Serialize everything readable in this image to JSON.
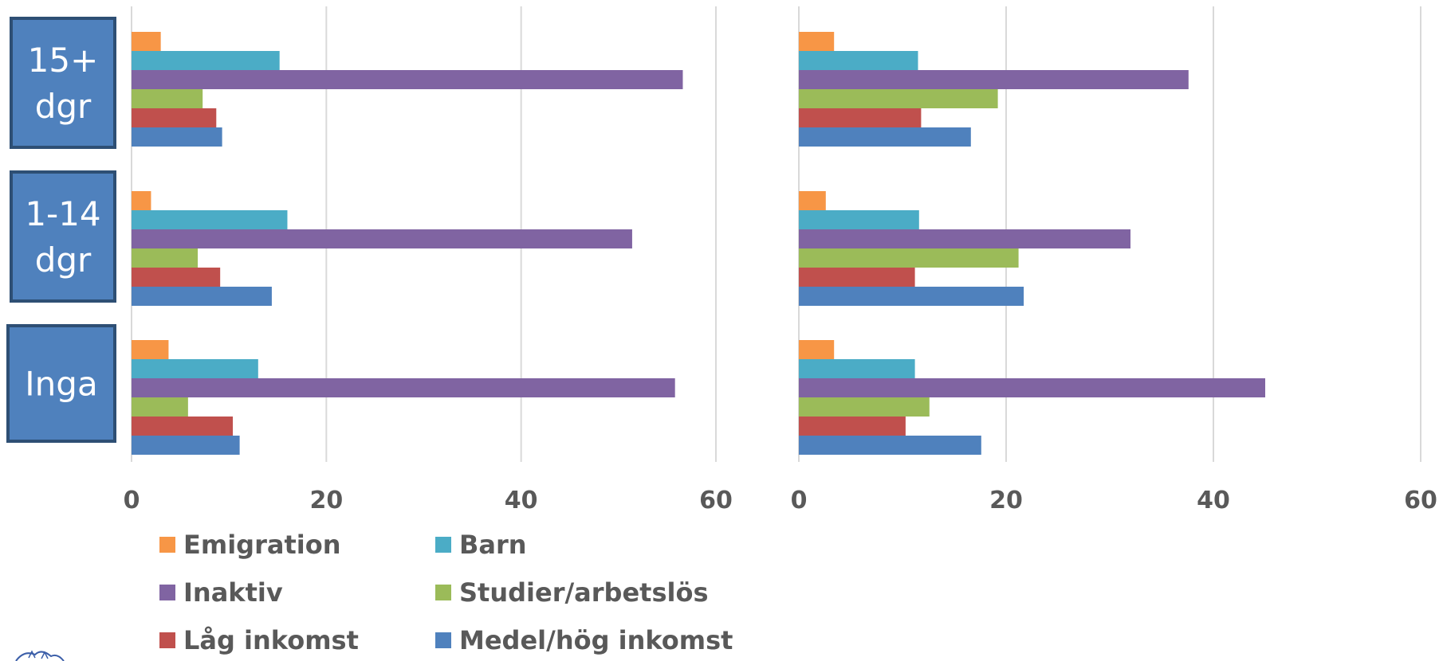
{
  "chart_data": [
    {
      "type": "bar",
      "orientation": "horizontal",
      "categories": [
        "15+ dgr",
        "1-14 dgr",
        "Inga"
      ],
      "category_labels": [
        [
          "15+",
          "dgr"
        ],
        [
          "1-14",
          "dgr"
        ],
        [
          "Inga"
        ]
      ],
      "xlim": [
        0,
        60
      ],
      "xticks": [
        "0",
        "20",
        "40",
        "60"
      ],
      "grid": true,
      "series": [
        {
          "name": "Emigration",
          "color": "#F79646",
          "values": [
            3,
            2,
            3.8
          ]
        },
        {
          "name": "Barn",
          "color": "#4BACC6",
          "values": [
            15.2,
            16,
            13
          ]
        },
        {
          "name": "Inaktiv",
          "color": "#8064A2",
          "values": [
            56.6,
            51.4,
            55.8
          ]
        },
        {
          "name": "Studier/arbetslös",
          "color": "#9BBB59",
          "values": [
            7.3,
            6.8,
            5.8
          ]
        },
        {
          "name": "Låg inkomst",
          "color": "#C0504D",
          "values": [
            8.7,
            9.1,
            10.4
          ]
        },
        {
          "name": "Medel/hög inkomst",
          "color": "#4F81BD",
          "values": [
            9.3,
            14.4,
            11.1
          ]
        }
      ]
    },
    {
      "type": "bar",
      "orientation": "horizontal",
      "categories": [
        "15+ dgr",
        "1-14 dgr",
        "Inga"
      ],
      "xlim": [
        0,
        60
      ],
      "xticks": [
        "0",
        "20",
        "40",
        "60"
      ],
      "grid": true,
      "series": [
        {
          "name": "Emigration",
          "color": "#F79646",
          "values": [
            3.4,
            2.6,
            3.4
          ]
        },
        {
          "name": "Barn",
          "color": "#4BACC6",
          "values": [
            11.5,
            11.6,
            11.2
          ]
        },
        {
          "name": "Inaktiv",
          "color": "#8064A2",
          "values": [
            37.6,
            32,
            45
          ]
        },
        {
          "name": "Studier/arbetslös",
          "color": "#9BBB59",
          "values": [
            19.2,
            21.2,
            12.6
          ]
        },
        {
          "name": "Låg inkomst",
          "color": "#C0504D",
          "values": [
            11.8,
            11.2,
            10.3
          ]
        },
        {
          "name": "Medel/hög inkomst",
          "color": "#4F81BD",
          "values": [
            16.6,
            21.7,
            17.6
          ]
        }
      ]
    }
  ],
  "legend": [
    {
      "name": "Emigration",
      "color": "#F79646"
    },
    {
      "name": "Barn",
      "color": "#4BACC6"
    },
    {
      "name": "Inaktiv",
      "color": "#8064A2"
    },
    {
      "name": "Studier/arbetslös",
      "color": "#9BBB59"
    },
    {
      "name": "Låg inkomst",
      "color": "#C0504D"
    },
    {
      "name": "Medel/hög inkomst",
      "color": "#4F81BD"
    }
  ],
  "colors": {
    "category_box": "#4F81BD",
    "category_box_border": "#2E4F74",
    "grid": "#D9D9D9",
    "text": "#595959"
  }
}
